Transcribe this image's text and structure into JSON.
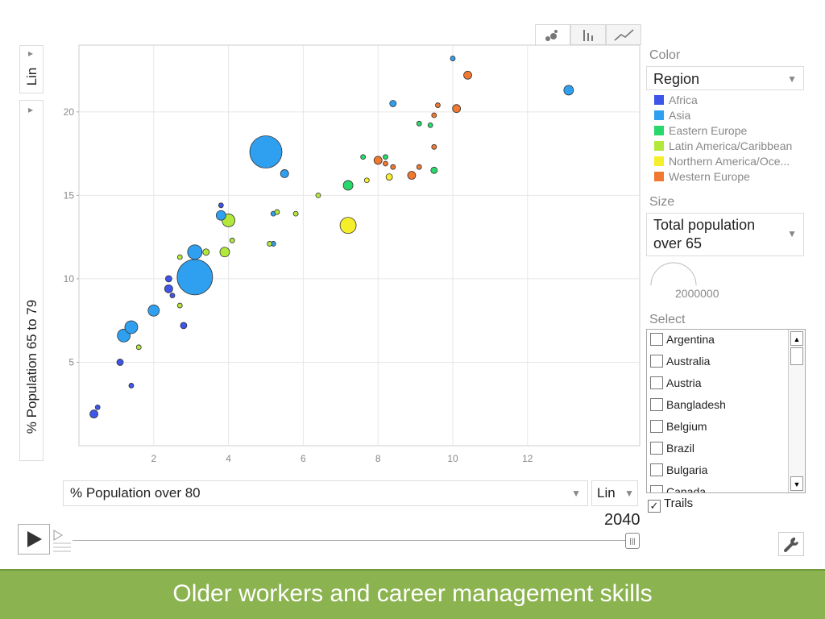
{
  "chart_data": {
    "type": "scatter",
    "xlabel": "% Population over 80",
    "ylabel": "% Population 65 to 79",
    "x_scale": "Lin",
    "y_scale": "Lin",
    "xlim": [
      0,
      15
    ],
    "ylim": [
      0,
      24
    ],
    "x_ticks": [
      "2",
      "4",
      "6",
      "8",
      "10",
      "12"
    ],
    "y_ticks": [
      "5",
      "10",
      "15",
      "20"
    ],
    "year": "2040",
    "grid": true,
    "series": [
      {
        "name": "Africa",
        "color": "#3d55e8",
        "points": [
          [
            0.4,
            1.9,
            5
          ],
          [
            0.5,
            2.3,
            3
          ],
          [
            1.1,
            5.0,
            4
          ],
          [
            1.4,
            3.6,
            3
          ],
          [
            2.4,
            9.4,
            5
          ],
          [
            2.4,
            10.0,
            4
          ],
          [
            2.5,
            9.0,
            3
          ],
          [
            2.8,
            7.2,
            4
          ],
          [
            3.8,
            14.4,
            3
          ]
        ]
      },
      {
        "name": "Asia",
        "color": "#2fa0f0",
        "points": [
          [
            1.2,
            6.6,
            8
          ],
          [
            1.4,
            7.1,
            8
          ],
          [
            2.0,
            8.1,
            7
          ],
          [
            3.1,
            10.1,
            22
          ],
          [
            3.1,
            11.6,
            9
          ],
          [
            3.8,
            13.8,
            6
          ],
          [
            5.0,
            17.6,
            20
          ],
          [
            5.2,
            13.9,
            3
          ],
          [
            5.2,
            12.1,
            3
          ],
          [
            5.5,
            16.3,
            5
          ],
          [
            8.4,
            20.5,
            4
          ],
          [
            10.0,
            23.2,
            3
          ],
          [
            13.1,
            21.3,
            6
          ]
        ]
      },
      {
        "name": "Eastern Europe",
        "color": "#28d86a",
        "points": [
          [
            7.2,
            15.6,
            6
          ],
          [
            7.6,
            17.3,
            3
          ],
          [
            8.2,
            17.3,
            3
          ],
          [
            9.1,
            19.3,
            3
          ],
          [
            9.4,
            19.2,
            3
          ],
          [
            9.5,
            16.5,
            4
          ]
        ]
      },
      {
        "name": "Latin America/Caribbean",
        "color": "#b2e83a",
        "points": [
          [
            1.6,
            5.9,
            3
          ],
          [
            2.7,
            8.4,
            3
          ],
          [
            2.7,
            11.3,
            3
          ],
          [
            3.4,
            11.6,
            4
          ],
          [
            3.9,
            11.6,
            6
          ],
          [
            4.0,
            13.5,
            8
          ],
          [
            4.1,
            12.3,
            3
          ],
          [
            5.1,
            12.1,
            3
          ],
          [
            5.3,
            14.0,
            3
          ],
          [
            5.8,
            13.9,
            3
          ],
          [
            6.4,
            15.0,
            3
          ]
        ]
      },
      {
        "name": "Northern America/Oce...",
        "color": "#f5ee2a",
        "points": [
          [
            7.2,
            13.2,
            10
          ],
          [
            7.7,
            15.9,
            3
          ],
          [
            8.3,
            16.1,
            4
          ]
        ]
      },
      {
        "name": "Western Europe",
        "color": "#f07830",
        "points": [
          [
            8.0,
            17.1,
            5
          ],
          [
            8.2,
            16.9,
            3
          ],
          [
            8.4,
            16.7,
            3
          ],
          [
            8.9,
            16.2,
            5
          ],
          [
            9.1,
            16.7,
            3
          ],
          [
            9.5,
            17.9,
            3
          ],
          [
            9.5,
            19.8,
            3
          ],
          [
            9.6,
            20.4,
            3
          ],
          [
            10.1,
            20.2,
            5
          ],
          [
            10.4,
            22.2,
            5
          ]
        ]
      }
    ]
  },
  "tabs": {
    "bubble": "bubble-chart",
    "bar": "bar-chart",
    "line": "line-chart"
  },
  "y_scale_label": "Lin",
  "x_axis_select": "% Population over 80",
  "x_scale_label": "Lin",
  "color_panel": {
    "title": "Color",
    "value": "Region"
  },
  "size_panel": {
    "title": "Size",
    "value_line1": "Total population",
    "value_line2": "over 65",
    "legend_value": "2000000"
  },
  "select_panel": {
    "title": "Select",
    "items": [
      "Argentina",
      "Australia",
      "Austria",
      "Bangladesh",
      "Belgium",
      "Brazil",
      "Bulgaria",
      "Canada"
    ]
  },
  "trails": {
    "label": "Trails",
    "checked": true
  },
  "footer": {
    "title": "Older workers and career management skills"
  }
}
